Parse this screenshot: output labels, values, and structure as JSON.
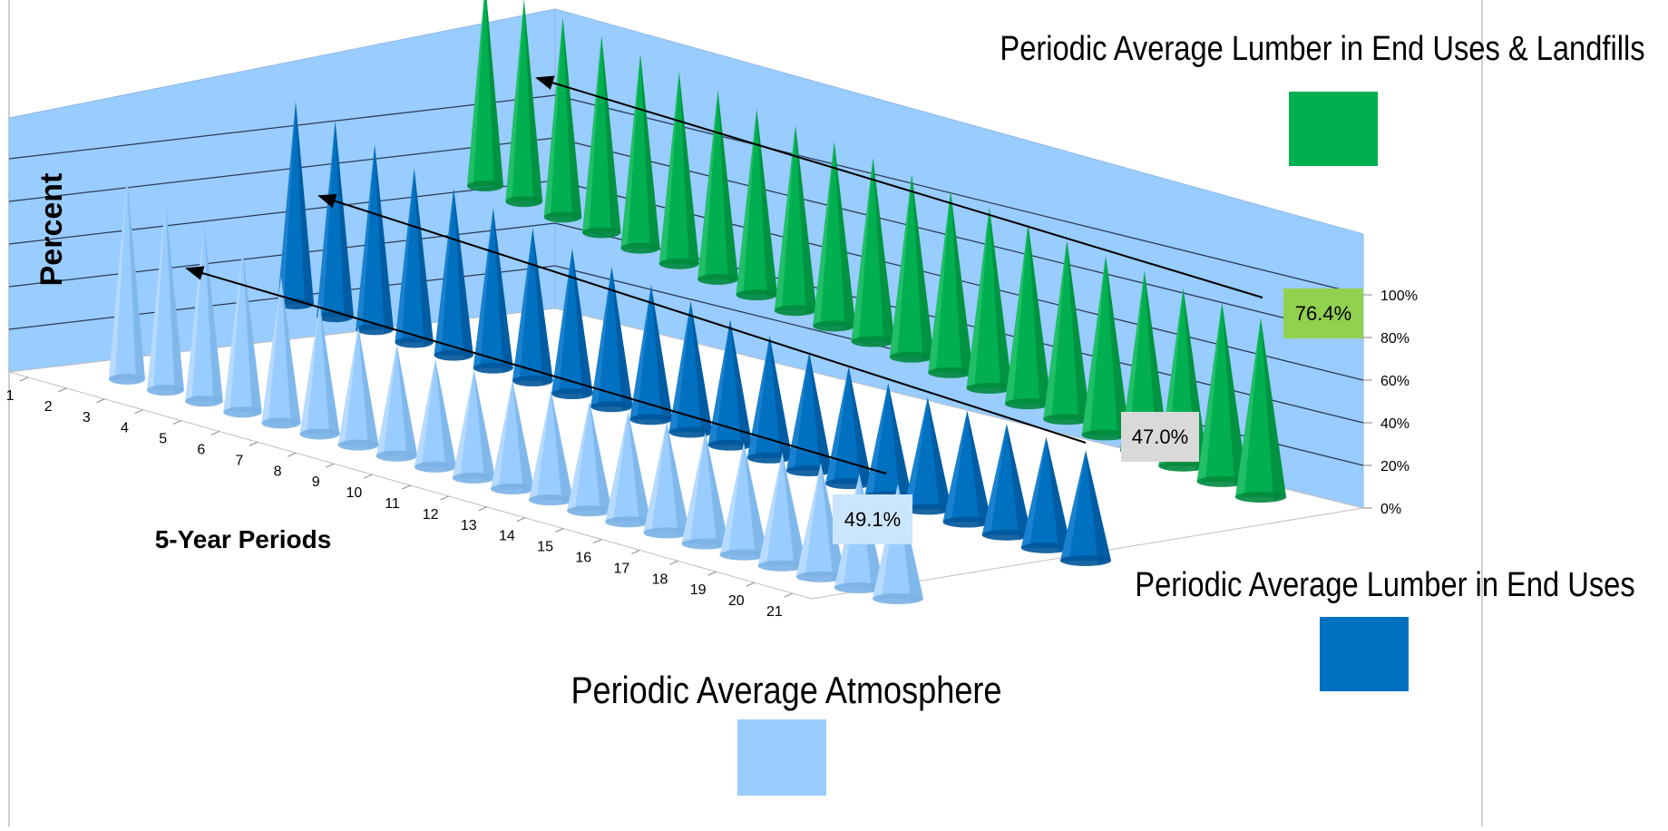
{
  "chart_data": {
    "type": "bar",
    "style": "3d-cone",
    "categories": [
      "1",
      "2",
      "3",
      "4",
      "5",
      "6",
      "7",
      "8",
      "9",
      "10",
      "11",
      "12",
      "13",
      "14",
      "15",
      "16",
      "17",
      "18",
      "19",
      "20",
      "21"
    ],
    "xlabel": "5-Year Periods",
    "ylabel": "Percent",
    "ylim": [
      0,
      100
    ],
    "y_ticks": [
      "0%",
      "20%",
      "40%",
      "60%",
      "80%",
      "100%"
    ],
    "grid": true,
    "series": [
      {
        "name": "Periodic Average Atmosphere",
        "color": "#99ccff",
        "values": [
          100,
          92,
          86,
          78,
          70,
          62,
          56,
          52,
          50,
          49.8,
          49.7,
          49.6,
          49.5,
          49.4,
          49.3,
          49.3,
          49.2,
          49.2,
          49.1,
          49.1,
          49.1
        ],
        "annotation": "49.1%"
      },
      {
        "name": "Periodic Average Lumber in End Uses",
        "color": "#0070c0",
        "values": [
          100,
          96,
          90,
          84,
          80,
          76,
          72,
          68,
          65,
          62,
          60,
          57,
          55,
          53,
          52,
          50,
          49,
          48.5,
          48,
          47.5,
          47.0
        ],
        "annotation": "47.0%"
      },
      {
        "name": "Periodic Average Lumber in End Uses & Landfills",
        "color": "#00b050",
        "values": [
          100,
          99,
          97,
          95,
          93,
          91,
          89,
          87,
          86,
          85,
          84,
          83,
          82,
          81,
          80,
          79,
          78.5,
          78,
          77,
          76.8,
          76.4
        ],
        "annotation": "76.4%"
      }
    ],
    "legend": [
      {
        "label": "Periodic Average Lumber in End Uses & Landfills",
        "color": "#00b050"
      },
      {
        "label": "Periodic Average Lumber in End Uses",
        "color": "#0070c0"
      },
      {
        "label": "Periodic Average Atmosphere",
        "color": "#99ccff"
      }
    ],
    "legend_placement": "right and bottom",
    "annotation_colors": {
      "green": "#92d050",
      "blue": "#d9d9d9",
      "light": "#cce5ff"
    }
  }
}
